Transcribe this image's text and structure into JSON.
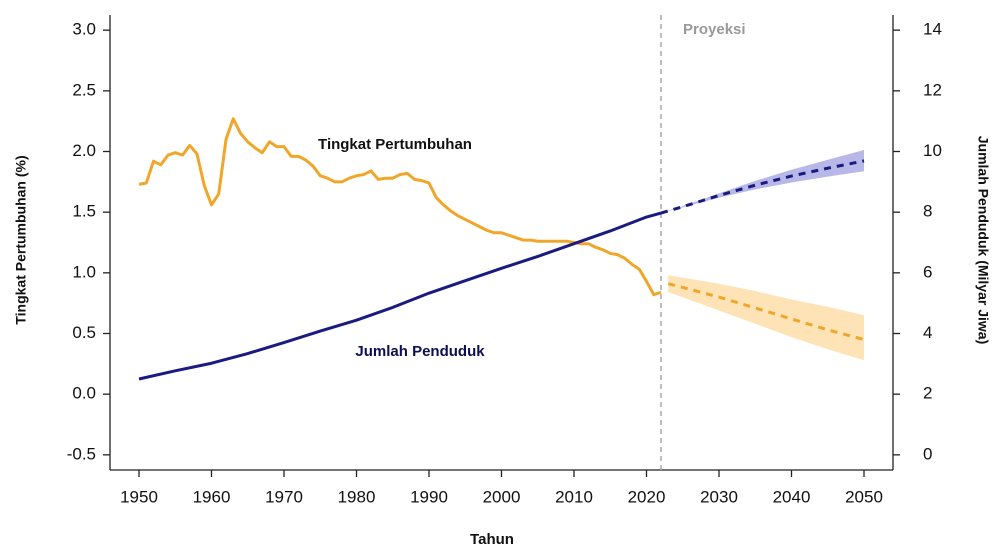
{
  "chart_data": {
    "type": "line",
    "xlabel": "Tahun",
    "ylabel": "Tingkat Pertumbuhan (%)",
    "y2label": "Jumlah Penduduk (Milyar Jiwa)",
    "annotations": [
      "Tingkat Pertumbuhan",
      "Jumlah Penduduk"
    ],
    "projection_label": "Proyeksi",
    "projection_start": 2022,
    "xlim": [
      1946,
      2054
    ],
    "xticks": [
      1950,
      1960,
      1970,
      1980,
      1990,
      2000,
      2010,
      2020,
      2030,
      2040,
      2050
    ],
    "ylim": [
      -0.625,
      3.125
    ],
    "yticks": [
      {
        "value": 3,
        "label": "3.0"
      },
      2.5,
      {
        "value": 2,
        "label": "2.0"
      },
      1.5,
      {
        "value": 1,
        "label": "1.0"
      },
      0.5,
      {
        "value": 0,
        "label": "0.0"
      },
      -0.5
    ],
    "y2lim": [
      -0.5,
      14.5
    ],
    "y2ticks": [
      14,
      12,
      10,
      8,
      6,
      4,
      2,
      0
    ],
    "series": [
      {
        "axis": "y",
        "color": "#f0a629",
        "dashed": false,
        "x": [
          1950,
          1951,
          1952,
          1953,
          1954,
          1955,
          1956,
          1957,
          1958,
          1959,
          1960,
          1961,
          1962,
          1963,
          1964,
          1965,
          1966,
          1967,
          1968,
          1969,
          1970,
          1971,
          1972,
          1973,
          1974,
          1975,
          1976,
          1977,
          1978,
          1979,
          1980,
          1981,
          1982,
          1983,
          1984,
          1985,
          1986,
          1987,
          1988,
          1989,
          1990,
          1991,
          1992,
          1993,
          1994,
          1995,
          1996,
          1997,
          1998,
          1999,
          2000,
          2001,
          2002,
          2003,
          2004,
          2005,
          2006,
          2007,
          2008,
          2009,
          2010,
          2011,
          2012,
          2013,
          2014,
          2015,
          2016,
          2017,
          2018,
          2019,
          2020,
          2021,
          2022
        ],
        "values": [
          1.73,
          1.74,
          1.92,
          1.89,
          1.97,
          1.99,
          1.97,
          2.05,
          1.98,
          1.72,
          1.56,
          1.65,
          2.1,
          2.27,
          2.15,
          2.08,
          2.03,
          1.99,
          2.08,
          2.04,
          2.04,
          1.96,
          1.96,
          1.93,
          1.88,
          1.8,
          1.78,
          1.75,
          1.75,
          1.78,
          1.8,
          1.81,
          1.84,
          1.77,
          1.78,
          1.78,
          1.81,
          1.82,
          1.77,
          1.76,
          1.74,
          1.62,
          1.56,
          1.51,
          1.47,
          1.44,
          1.41,
          1.38,
          1.35,
          1.33,
          1.33,
          1.31,
          1.29,
          1.27,
          1.27,
          1.26,
          1.26,
          1.26,
          1.26,
          1.26,
          1.25,
          1.24,
          1.24,
          1.21,
          1.19,
          1.16,
          1.15,
          1.12,
          1.07,
          1.03,
          0.93,
          0.82,
          0.84
        ]
      },
      {
        "axis": "y",
        "color": "#f0a629",
        "dashed": true,
        "band_color": "#fde3b6",
        "x": [
          2023,
          2025,
          2030,
          2035,
          2040,
          2045,
          2050
        ],
        "values": [
          0.91,
          0.88,
          0.8,
          0.71,
          0.62,
          0.53,
          0.45
        ],
        "lower": [
          0.84,
          0.8,
          0.69,
          0.58,
          0.47,
          0.37,
          0.28
        ],
        "upper": [
          0.98,
          0.96,
          0.91,
          0.85,
          0.78,
          0.72,
          0.65
        ]
      },
      {
        "axis": "y2",
        "color": "#1a1a80",
        "dashed": false,
        "x": [
          1950,
          1955,
          1960,
          1965,
          1970,
          1975,
          1980,
          1985,
          1990,
          1995,
          2000,
          2005,
          2010,
          2015,
          2020,
          2022
        ],
        "values": [
          2.5,
          2.77,
          3.02,
          3.34,
          3.7,
          4.08,
          4.44,
          4.86,
          5.33,
          5.74,
          6.15,
          6.54,
          6.96,
          7.38,
          7.84,
          7.97
        ]
      },
      {
        "axis": "y2",
        "color": "#1a1a80",
        "dashed": true,
        "band_color": "#b8b8e8",
        "x": [
          2022,
          2025,
          2030,
          2035,
          2040,
          2045,
          2050
        ],
        "values": [
          7.97,
          8.18,
          8.55,
          8.89,
          9.19,
          9.45,
          9.69
        ],
        "lower": [
          7.97,
          8.16,
          8.48,
          8.75,
          8.98,
          9.17,
          9.35
        ],
        "upper": [
          7.97,
          8.2,
          8.62,
          9.03,
          9.4,
          9.73,
          10.05
        ]
      }
    ]
  }
}
